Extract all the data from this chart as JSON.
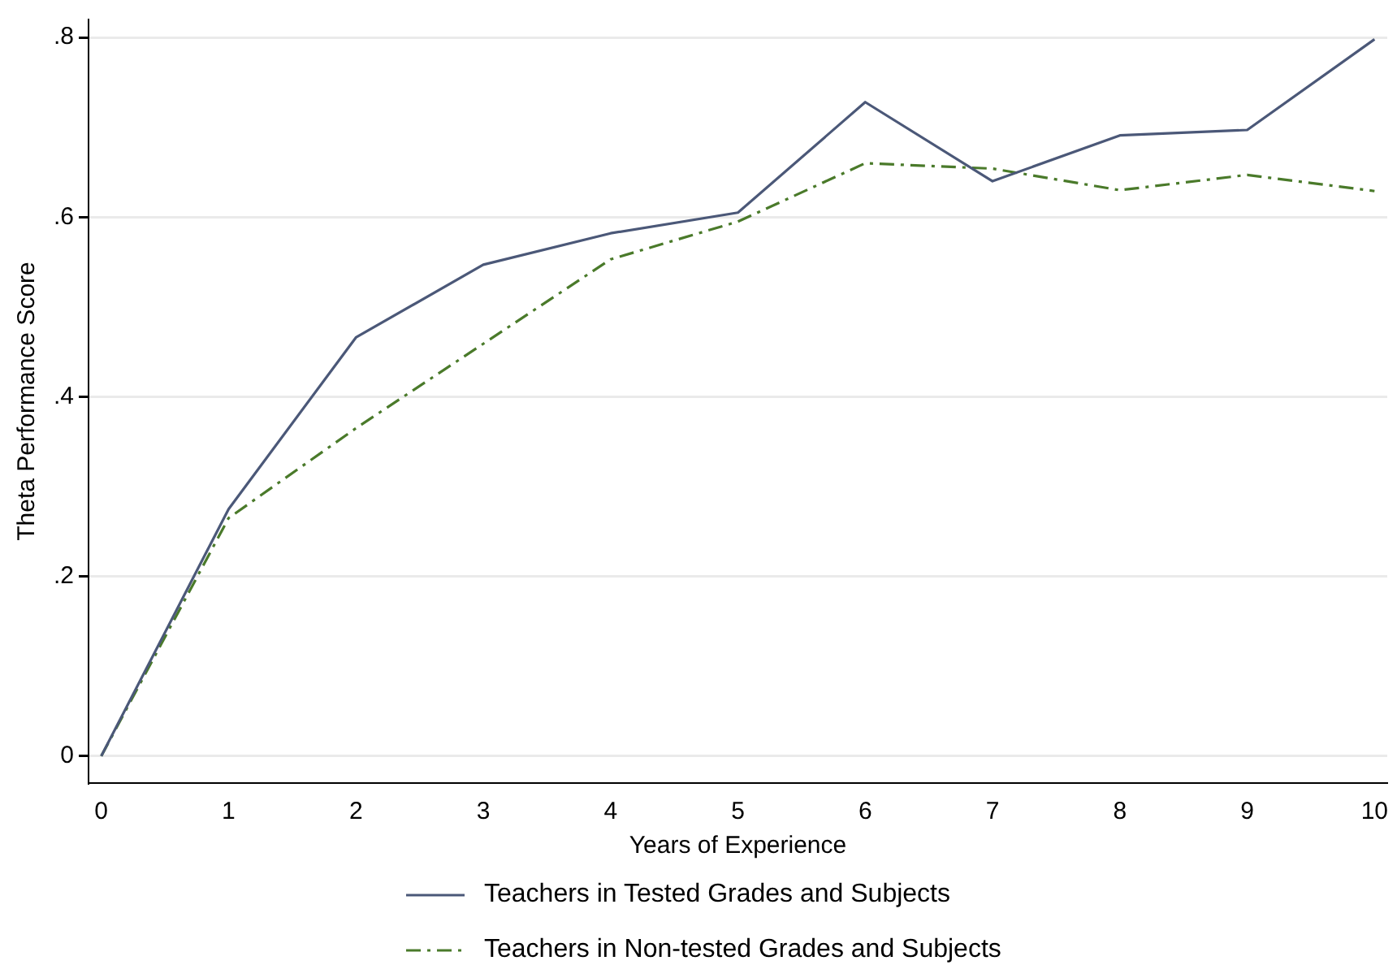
{
  "chart_data": {
    "type": "line",
    "xlabel": "Years of Experience",
    "ylabel": "Theta Performance Score",
    "x": [
      0,
      1,
      2,
      3,
      4,
      5,
      6,
      7,
      8,
      9,
      10
    ],
    "series": [
      {
        "name": "Teachers in Tested Grades and Subjects",
        "color": "#4b5878",
        "line_style": "solid",
        "values": [
          0,
          0.275,
          0.466,
          0.547,
          0.582,
          0.605,
          0.728,
          0.64,
          0.691,
          0.697,
          0.798
        ]
      },
      {
        "name": "Teachers in Non-tested Grades and Subjects",
        "color": "#4a7a2a",
        "line_style": "dashdot",
        "values": [
          0,
          0.265,
          0.365,
          0.459,
          0.553,
          0.595,
          0.66,
          0.654,
          0.63,
          0.647,
          0.629
        ]
      }
    ],
    "xlim": [
      -0.1,
      10.1
    ],
    "xticks": [
      0,
      1,
      2,
      3,
      4,
      5,
      6,
      7,
      8,
      9,
      10
    ],
    "ylim": [
      -0.03,
      0.82
    ],
    "yticks": [
      0,
      {
        "value": 0.2,
        "label": ".2"
      },
      {
        "value": 0.4,
        "label": ".4"
      },
      {
        "value": 0.6,
        "label": ".6"
      },
      {
        "value": 0.8,
        "label": ".8"
      }
    ],
    "grid": "y",
    "legend": "bottom",
    "marker": "none"
  }
}
